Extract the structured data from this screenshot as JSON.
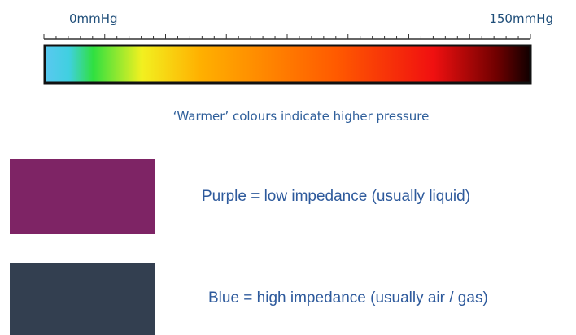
{
  "scale": {
    "min_label": "0mmHg",
    "max_label": "150mmHg",
    "caption": "‘Warmer’ colours indicate higher pressure"
  },
  "legend": [
    {
      "color": "#7e2465",
      "label": "Purple = low impedance (usually liquid)"
    },
    {
      "color": "#333f50",
      "label": "Blue = high impedance (usually air / gas)"
    }
  ]
}
